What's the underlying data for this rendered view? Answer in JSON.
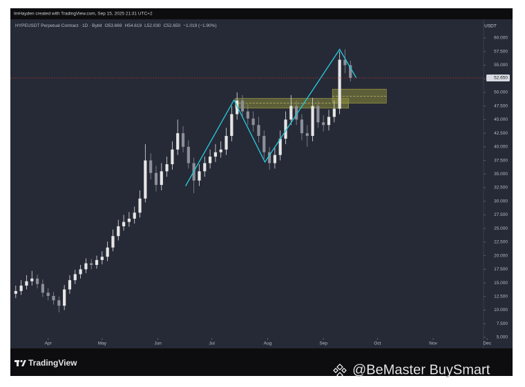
{
  "header": "ImHayden created with TradingView.com, Sep 15, 2025 21:31 UTC+2",
  "chart_data": {
    "type": "candlestick",
    "title": "HYPEUSDT Perpetual Contract · 1D · Bybit",
    "legend_values": [
      "O53.669",
      "H54.619",
      "L52.030",
      "C52.650",
      "−1.019 (−1.90%)"
    ],
    "currency": "USDT",
    "x": [
      -18,
      -15,
      -12,
      -9,
      -6,
      -3,
      0,
      3,
      6,
      9,
      12,
      15,
      18,
      21,
      24,
      27,
      30,
      33,
      36,
      39,
      42,
      45,
      48,
      51,
      54,
      57,
      60,
      63,
      66,
      69,
      72,
      75,
      78,
      81,
      84,
      87,
      90,
      93,
      96,
      99,
      102,
      105,
      108,
      111,
      114,
      117,
      120,
      123,
      126,
      129,
      132,
      135,
      138,
      141,
      144,
      147,
      150,
      153,
      156,
      159,
      162,
      165,
      168
    ],
    "open": [
      13.0,
      13.5,
      14.5,
      15.3,
      15.8,
      14.8,
      13.2,
      12.6,
      11.8,
      10.8,
      13.8,
      15.5,
      16.6,
      17.5,
      18.6,
      18.3,
      19.2,
      19.8,
      21.5,
      23.6,
      25.4,
      26.2,
      26.8,
      27.9,
      30.5,
      37.5,
      35.2,
      33.0,
      35.5,
      36.8,
      39.5,
      42.5,
      40.0,
      37.0,
      33.8,
      35.5,
      37.0,
      38.2,
      39.0,
      39.5,
      42.0,
      46.0,
      48.5,
      46.5,
      45.2,
      44.0,
      42.0,
      39.0,
      37.0,
      38.5,
      41.5,
      45.0,
      47.5,
      45.0,
      42.5,
      42.0,
      47.5,
      44.5,
      44.0,
      45.5,
      47.0,
      56.0,
      55.0
    ],
    "high": [
      14.5,
      15.5,
      16.4,
      17.2,
      16.5,
      15.6,
      14.0,
      13.3,
      12.5,
      14.6,
      16.4,
      17.4,
      18.3,
      19.5,
      19.4,
      20.0,
      20.8,
      22.6,
      24.8,
      26.6,
      27.5,
      28.0,
      29.0,
      32.0,
      40.5,
      38.8,
      36.5,
      37.0,
      38.2,
      41.0,
      45.0,
      43.8,
      41.2,
      38.0,
      36.8,
      38.2,
      39.5,
      40.5,
      41.0,
      43.5,
      47.5,
      50.0,
      49.5,
      47.8,
      46.5,
      45.5,
      43.0,
      40.0,
      39.8,
      43.0,
      46.5,
      49.5,
      48.5,
      46.0,
      44.0,
      49.0,
      48.5,
      45.8,
      46.8,
      48.5,
      57.5,
      57.9,
      55.8
    ],
    "low": [
      12.2,
      12.8,
      13.8,
      14.5,
      14.0,
      12.4,
      11.8,
      11.0,
      9.6,
      10.0,
      13.0,
      14.8,
      15.8,
      16.8,
      17.5,
      17.6,
      18.4,
      19.0,
      20.8,
      22.8,
      24.6,
      25.3,
      25.9,
      27.0,
      29.8,
      34.0,
      31.8,
      32.0,
      34.5,
      35.8,
      38.5,
      39.0,
      36.0,
      31.5,
      32.8,
      34.5,
      36.0,
      37.2,
      38.0,
      38.5,
      41.0,
      45.0,
      45.3,
      44.0,
      42.8,
      40.8,
      37.8,
      35.8,
      36.0,
      37.5,
      40.5,
      44.0,
      44.0,
      41.2,
      40.0,
      41.0,
      43.5,
      42.8,
      43.0,
      44.5,
      46.0,
      53.5,
      52.0
    ],
    "close": [
      13.5,
      14.5,
      15.3,
      15.8,
      14.8,
      13.2,
      12.6,
      11.8,
      10.8,
      13.8,
      15.5,
      16.6,
      17.5,
      18.6,
      18.3,
      19.2,
      19.8,
      21.5,
      23.6,
      25.4,
      26.2,
      26.8,
      27.9,
      30.5,
      37.5,
      35.2,
      33.0,
      35.5,
      36.8,
      39.5,
      42.5,
      40.0,
      37.0,
      33.8,
      35.5,
      37.0,
      38.2,
      39.0,
      39.5,
      42.0,
      46.0,
      48.5,
      46.5,
      45.2,
      44.0,
      42.0,
      39.0,
      37.0,
      38.5,
      41.5,
      45.0,
      47.5,
      45.0,
      42.5,
      42.0,
      47.5,
      44.5,
      44.0,
      45.5,
      47.0,
      56.0,
      55.0,
      52.65
    ],
    "up_color": "#e6e6e6",
    "down_color": "#8c8f99",
    "xlim": [
      -21,
      242
    ],
    "xticks": [
      {
        "value": 0,
        "label": "Apr"
      },
      {
        "value": 30,
        "label": "May"
      },
      {
        "value": 61,
        "label": "Jun"
      },
      {
        "value": 91,
        "label": "Jul"
      },
      {
        "value": 122,
        "label": "Aug"
      },
      {
        "value": 153,
        "label": "Sep"
      },
      {
        "value": 183,
        "label": "Oct"
      },
      {
        "value": 214,
        "label": "Nov"
      },
      {
        "value": 244,
        "label": "Dec"
      }
    ],
    "ylim": [
      4.87,
      63.17
    ],
    "yticks": [
      {
        "value": 5,
        "label": "5.000"
      },
      {
        "value": 7.5,
        "label": "7.500"
      },
      {
        "value": 10,
        "label": "10.000"
      },
      {
        "value": 12.5,
        "label": "12.500"
      },
      {
        "value": 15,
        "label": "15.000"
      },
      {
        "value": 17.5,
        "label": "17.500"
      },
      {
        "value": 20,
        "label": "20.000"
      },
      {
        "value": 22.5,
        "label": "22.500"
      },
      {
        "value": 25,
        "label": "25.000"
      },
      {
        "value": 27.5,
        "label": "27.500"
      },
      {
        "value": 30,
        "label": "30.000"
      },
      {
        "value": 32.5,
        "label": "32.500"
      },
      {
        "value": 35,
        "label": "35.000"
      },
      {
        "value": 37.5,
        "label": "37.500"
      },
      {
        "value": 40,
        "label": "40.000"
      },
      {
        "value": 42.5,
        "label": "42.500"
      },
      {
        "value": 45,
        "label": "45.000"
      },
      {
        "value": 47.5,
        "label": "47.500"
      },
      {
        "value": 50,
        "label": "50.000"
      },
      {
        "value": 52.5,
        "label": "52.500"
      },
      {
        "value": 55,
        "label": "55.000"
      },
      {
        "value": 57.5,
        "label": "57.500"
      },
      {
        "value": 60,
        "label": "60.000"
      }
    ],
    "last_price": {
      "value": 52.65,
      "label": "52.650",
      "color": "#c0392b"
    },
    "trendline": {
      "x": [
        76.4,
        103.3,
        120.5,
        162,
        171.2
      ],
      "y": [
        32.8,
        48.6,
        37.2,
        57.9,
        52.7
      ],
      "color": "#26c6da"
    },
    "zones": [
      {
        "x": [
          104,
          167
        ],
        "y": [
          47.1,
          48.9
        ]
      },
      {
        "x": [
          158,
          188
        ],
        "y": [
          48.0,
          50.6
        ]
      }
    ],
    "zone_color": "#8a8a3a"
  },
  "footer": {
    "brand": "TradingView"
  },
  "watermark": "@BeMaster BuySmart"
}
